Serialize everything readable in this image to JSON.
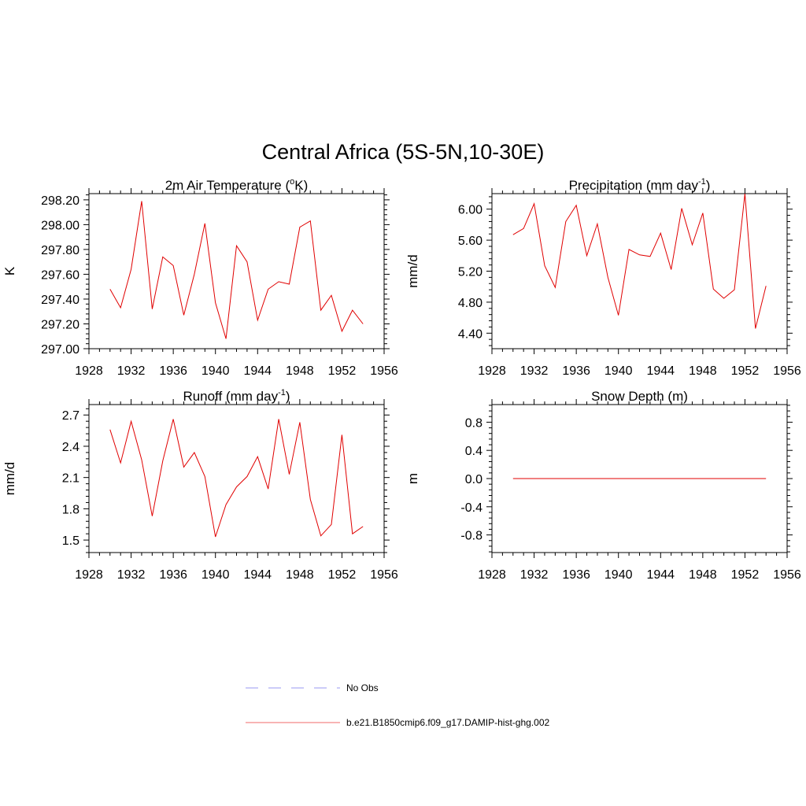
{
  "title": "Central Africa (5S-5N,10-30E)",
  "legend": {
    "items": [
      {
        "label": "No Obs",
        "color": "#9a9af0",
        "dash": "dashed"
      },
      {
        "label": "b.e21.B1850cmip6.f09_g17.DAMIP-hist-ghg.002",
        "color": "#f06a6a",
        "dash": "solid"
      }
    ]
  },
  "chart_data": [
    {
      "id": "temp",
      "type": "line",
      "title_parts": [
        "2m Air Temperature (",
        "o",
        "K)"
      ],
      "title_style": "super",
      "ylabel": "K",
      "xlim": [
        1928,
        1956
      ],
      "ylim": [
        297.0,
        298.25
      ],
      "xticks": [
        1928,
        1932,
        1936,
        1940,
        1944,
        1948,
        1952,
        1956
      ],
      "yticks": [
        297.0,
        297.2,
        297.4,
        297.6,
        297.8,
        298.0,
        298.2
      ],
      "ytick_labels": [
        "297.00",
        "297.20",
        "297.40",
        "297.60",
        "297.80",
        "298.00",
        "298.20"
      ],
      "x": [
        1930,
        1931,
        1932,
        1933,
        1934,
        1935,
        1936,
        1937,
        1938,
        1939,
        1940,
        1941,
        1942,
        1943,
        1944,
        1945,
        1946,
        1947,
        1948,
        1949,
        1950,
        1951,
        1952,
        1953,
        1954
      ],
      "series": [
        {
          "color": "#e00000",
          "values": [
            297.48,
            297.33,
            297.64,
            298.19,
            297.32,
            297.74,
            297.67,
            297.27,
            297.6,
            298.01,
            297.37,
            297.08,
            297.83,
            297.7,
            297.23,
            297.48,
            297.54,
            297.52,
            297.98,
            298.03,
            297.31,
            297.43,
            297.14,
            297.31,
            297.2
          ]
        }
      ]
    },
    {
      "id": "precip",
      "type": "line",
      "title_parts": [
        "Precipitation (mm day",
        "-1",
        ")"
      ],
      "title_style": "super",
      "ylabel": "mm/d",
      "xlim": [
        1928,
        1956
      ],
      "ylim": [
        4.2,
        6.2
      ],
      "xticks": [
        1928,
        1932,
        1936,
        1940,
        1944,
        1948,
        1952,
        1956
      ],
      "yticks": [
        4.4,
        4.8,
        5.2,
        5.6,
        6.0
      ],
      "ytick_labels": [
        "4.40",
        "4.80",
        "5.20",
        "5.60",
        "6.00"
      ],
      "x": [
        1930,
        1931,
        1932,
        1933,
        1934,
        1935,
        1936,
        1937,
        1938,
        1939,
        1940,
        1941,
        1942,
        1943,
        1944,
        1945,
        1946,
        1947,
        1948,
        1949,
        1950,
        1951,
        1952,
        1953,
        1954
      ],
      "series": [
        {
          "color": "#e00000",
          "values": [
            5.67,
            5.75,
            6.07,
            5.27,
            4.99,
            5.84,
            6.05,
            5.4,
            5.81,
            5.12,
            4.63,
            5.48,
            5.41,
            5.39,
            5.69,
            5.22,
            6.01,
            5.54,
            5.95,
            4.97,
            4.85,
            4.96,
            6.2,
            4.46,
            5.01
          ]
        }
      ]
    },
    {
      "id": "runoff",
      "type": "line",
      "title_parts": [
        "Runoff (mm day",
        "-1",
        ")"
      ],
      "title_style": "super",
      "ylabel": "mm/d",
      "xlim": [
        1928,
        1956
      ],
      "ylim": [
        1.38,
        2.8
      ],
      "xticks": [
        1928,
        1932,
        1936,
        1940,
        1944,
        1948,
        1952,
        1956
      ],
      "yticks": [
        1.5,
        1.8,
        2.1,
        2.4,
        2.7
      ],
      "ytick_labels": [
        "1.5",
        "1.8",
        "2.1",
        "2.4",
        "2.7"
      ],
      "x": [
        1930,
        1931,
        1932,
        1933,
        1934,
        1935,
        1936,
        1937,
        1938,
        1939,
        1940,
        1941,
        1942,
        1943,
        1944,
        1945,
        1946,
        1947,
        1948,
        1949,
        1950,
        1951,
        1952,
        1953,
        1954
      ],
      "series": [
        {
          "color": "#e00000",
          "values": [
            2.56,
            2.24,
            2.64,
            2.27,
            1.73,
            2.26,
            2.66,
            2.2,
            2.34,
            2.11,
            1.53,
            1.84,
            2.01,
            2.11,
            2.3,
            1.99,
            2.66,
            2.13,
            2.63,
            1.89,
            1.54,
            1.65,
            2.51,
            1.56,
            1.63
          ]
        }
      ]
    },
    {
      "id": "snow",
      "type": "line",
      "title_parts": [
        "Snow Depth (m)",
        "",
        ""
      ],
      "title_style": "plain",
      "ylabel": "m",
      "xlim": [
        1928,
        1956
      ],
      "ylim": [
        -1.05,
        1.05
      ],
      "xticks": [
        1928,
        1932,
        1936,
        1940,
        1944,
        1948,
        1952,
        1956
      ],
      "yticks": [
        -0.8,
        -0.4,
        0.0,
        0.4,
        0.8
      ],
      "ytick_labels": [
        "-0.8",
        "-0.4",
        "0.0",
        "0.4",
        "0.8"
      ],
      "x": [
        1930,
        1931,
        1932,
        1933,
        1934,
        1935,
        1936,
        1937,
        1938,
        1939,
        1940,
        1941,
        1942,
        1943,
        1944,
        1945,
        1946,
        1947,
        1948,
        1949,
        1950,
        1951,
        1952,
        1953,
        1954
      ],
      "series": [
        {
          "color": "#e00000",
          "values": [
            0,
            0,
            0,
            0,
            0,
            0,
            0,
            0,
            0,
            0,
            0,
            0,
            0,
            0,
            0,
            0,
            0,
            0,
            0,
            0,
            0,
            0,
            0,
            0,
            0
          ]
        }
      ]
    }
  ]
}
